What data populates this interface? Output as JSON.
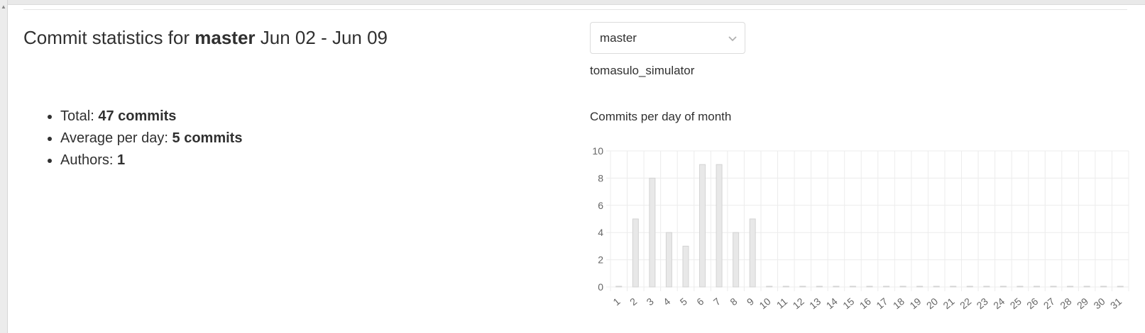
{
  "header": {
    "title_prefix": "Commit statistics for",
    "branch": "master",
    "date_range": "Jun 02 - Jun 09"
  },
  "stats": {
    "total_label": "Total:",
    "total_value": "47 commits",
    "average_label": "Average per day:",
    "average_value": "5 commits",
    "authors_label": "Authors:",
    "authors_value": "1"
  },
  "branch_select": {
    "selected": "master",
    "icon": "chevron-down-icon"
  },
  "project_name": "tomasulo_simulator",
  "chart_title": "Commits per day of month",
  "chart_data": {
    "type": "bar",
    "title": "Commits per day of month",
    "categories": [
      "1",
      "2",
      "3",
      "4",
      "5",
      "6",
      "7",
      "8",
      "9",
      "10",
      "11",
      "12",
      "13",
      "14",
      "15",
      "16",
      "17",
      "18",
      "19",
      "20",
      "21",
      "22",
      "23",
      "24",
      "25",
      "26",
      "27",
      "28",
      "29",
      "30",
      "31"
    ],
    "values": [
      0,
      5,
      8,
      4,
      3,
      9,
      9,
      4,
      5,
      0,
      0,
      0,
      0,
      0,
      0,
      0,
      0,
      0,
      0,
      0,
      0,
      0,
      0,
      0,
      0,
      0,
      0,
      0,
      0,
      0,
      0
    ],
    "yticks": [
      0,
      2,
      4,
      6,
      8,
      10
    ],
    "ylim": [
      0,
      10
    ],
    "grid": true,
    "bar_fill": "#e8e8e8",
    "bar_stroke": "#d3d3d3",
    "grid_color": "#ececec"
  }
}
